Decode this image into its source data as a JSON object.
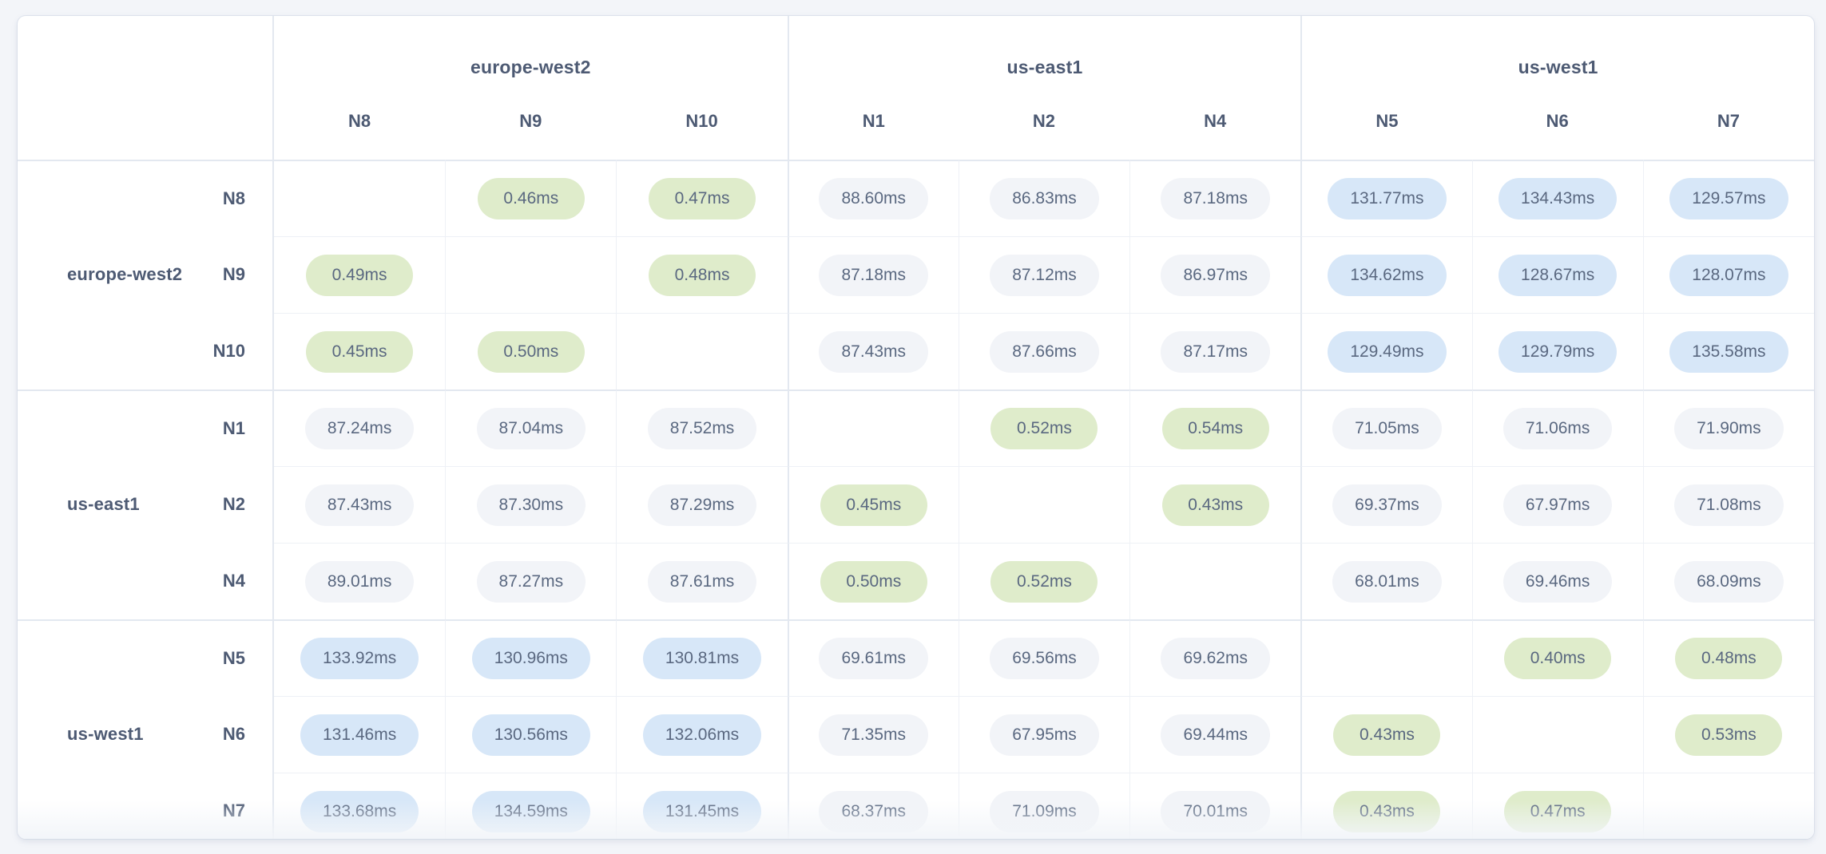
{
  "unit_suffix": "ms",
  "regions": [
    {
      "name": "europe-west2",
      "nodes": [
        "N8",
        "N9",
        "N10"
      ]
    },
    {
      "name": "us-east1",
      "nodes": [
        "N1",
        "N2",
        "N4"
      ]
    },
    {
      "name": "us-west1",
      "nodes": [
        "N5",
        "N6",
        "N7"
      ]
    }
  ],
  "matrix": {
    "row_nodes": [
      "N8",
      "N9",
      "N10",
      "N1",
      "N2",
      "N4",
      "N5",
      "N6",
      "N7"
    ],
    "col_nodes": [
      "N8",
      "N9",
      "N10",
      "N1",
      "N2",
      "N4",
      "N5",
      "N6",
      "N7"
    ],
    "values": [
      [
        null,
        "0.46",
        "0.47",
        "88.60",
        "86.83",
        "87.18",
        "131.77",
        "134.43",
        "129.57"
      ],
      [
        "0.49",
        null,
        "0.48",
        "87.18",
        "87.12",
        "86.97",
        "134.62",
        "128.67",
        "128.07"
      ],
      [
        "0.45",
        "0.50",
        null,
        "87.43",
        "87.66",
        "87.17",
        "129.49",
        "129.79",
        "135.58"
      ],
      [
        "87.24",
        "87.04",
        "87.52",
        null,
        "0.52",
        "0.54",
        "71.05",
        "71.06",
        "71.90"
      ],
      [
        "87.43",
        "87.30",
        "87.29",
        "0.45",
        null,
        "0.43",
        "69.37",
        "67.97",
        "71.08"
      ],
      [
        "89.01",
        "87.27",
        "87.61",
        "0.50",
        "0.52",
        null,
        "68.01",
        "69.46",
        "68.09"
      ],
      [
        "133.92",
        "130.96",
        "130.81",
        "69.61",
        "69.56",
        "69.62",
        null,
        "0.40",
        "0.48"
      ],
      [
        "131.46",
        "130.56",
        "132.06",
        "71.35",
        "67.95",
        "69.44",
        "0.43",
        null,
        "0.53"
      ],
      [
        "133.68",
        "134.59",
        "131.45",
        "68.37",
        "71.09",
        "70.01",
        "0.43",
        "0.47",
        null
      ]
    ]
  },
  "thresholds": {
    "fast_below_ms": 1,
    "slow_above_ms": 100
  },
  "colors": {
    "page_bg": "#f3f5f9",
    "panel_bg": "#ffffff",
    "line_strong": "#e3e8f0",
    "line_light": "#eef1f6",
    "pill_fast": "#dfeccb",
    "pill_medium": "#f2f4f8",
    "pill_slow": "#d7e7f8",
    "value_text": "#5a6880",
    "label_text": "#4d5a73"
  }
}
